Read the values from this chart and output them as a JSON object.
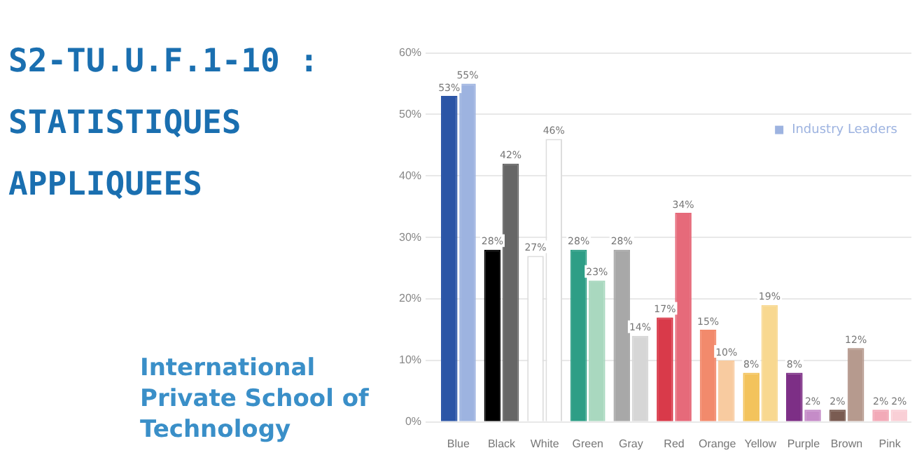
{
  "chart_data": {
    "type": "bar",
    "title": "S2-TU.U.F.1-10 : STATISTIQUES APPLIQUEES",
    "annotations": [
      "International Private School of Technology"
    ],
    "categories": [
      "Blue",
      "Black",
      "White",
      "Green",
      "Gray",
      "Red",
      "Orange",
      "Yellow",
      "Purple",
      "Brown",
      "Pink"
    ],
    "series": [
      {
        "colors": [
          "#2b55a6",
          "#000000",
          "#ffffff",
          "#2e9e86",
          "#a8a8a8",
          "#d93a4a",
          "#f28a6c",
          "#f3c35c",
          "#7d2f86",
          "#7a5c52",
          "#f2aab8"
        ],
        "values": [
          53,
          28,
          27,
          28,
          28,
          17,
          15,
          8,
          8,
          2,
          2
        ],
        "value_labels": [
          "53%",
          "28%",
          "27%",
          "28%",
          "28%",
          "17%",
          "15%",
          "8%",
          "8%",
          "2%",
          "2%"
        ]
      },
      {
        "name": "Industry Leaders",
        "color": "#9db3e0",
        "colors": [
          "#9db3e0",
          "#666666",
          "#ffffff",
          "#a9d8bf",
          "#d6d6d6",
          "#e66a7a",
          "#f8cba0",
          "#f8d890",
          "#c58cc8",
          "#b69a8e",
          "#f9cfd6"
        ],
        "values": [
          55,
          42,
          46,
          23,
          14,
          34,
          10,
          19,
          2,
          12,
          2
        ],
        "value_labels": [
          "55%",
          "42%",
          "46%",
          "23%",
          "14%",
          "34%",
          "10%",
          "19%",
          "2%",
          "12%",
          "2%"
        ]
      }
    ],
    "ylim": [
      0,
      60
    ],
    "yticks": [
      {
        "value": 0,
        "label": "0%"
      },
      {
        "value": 10,
        "label": "10%"
      },
      {
        "value": 20,
        "label": "20%"
      },
      {
        "value": 30,
        "label": "30%"
      },
      {
        "value": 40,
        "label": "40%"
      },
      {
        "value": 50,
        "label": "50%"
      },
      {
        "value": 60,
        "label": "60%"
      }
    ],
    "grid": "y",
    "legend": "top right"
  }
}
